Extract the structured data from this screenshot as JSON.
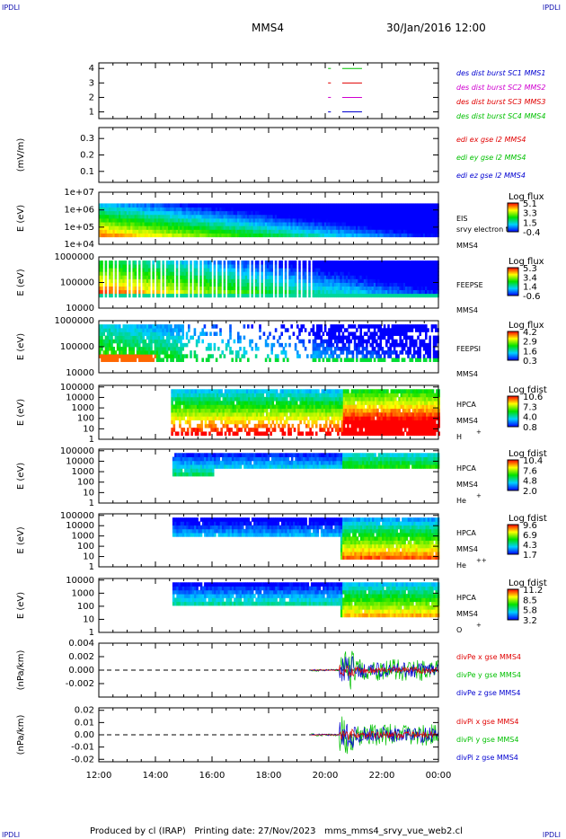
{
  "corners": {
    "tl": "IPDLI",
    "tr": "IPDLI",
    "bl": "IPDLI",
    "br": "IPDLI"
  },
  "header": {
    "spacecraft": "MMS4",
    "datetime": "30/Jan/2016 12:00"
  },
  "footer": {
    "text": "Produced by cl (IRAP)   Printing date: 27/Nov/2023   mms_mms4_srvy_vue_web2.cl"
  },
  "colors": {
    "red": "#e00000",
    "green": "#00c000",
    "blue": "#0000d0",
    "magenta": "#d000d0"
  },
  "chart_data": [
    {
      "type": "scatter",
      "panel": "burst",
      "ylabel": "",
      "yticks": [
        "1",
        "2",
        "3",
        "4"
      ],
      "series": [
        {
          "name": "des dist burst SC1 MMS1",
          "color": "#0000d0"
        },
        {
          "name": "des dist burst SC2 MMS2",
          "color": "#d000d0"
        },
        {
          "name": "des dist burst SC3 MMS3",
          "color": "#e00000"
        },
        {
          "name": "des dist burst SC4 MMS4",
          "color": "#00c000"
        }
      ],
      "bursts_hours": [
        [
          20.1,
          20.2
        ],
        [
          20.6,
          21.3
        ]
      ]
    },
    {
      "type": "line",
      "panel": "edi",
      "ylabel": "(mV/m)",
      "yticks": [
        "0.1",
        "0.2",
        "0.3"
      ],
      "series": [
        {
          "name": "edi ex gse l2 MMS4",
          "color": "#e00000"
        },
        {
          "name": "edi ey gse l2 MMS4",
          "color": "#00c000"
        },
        {
          "name": "edi ez gse l2 MMS4",
          "color": "#0000d0"
        }
      ]
    },
    {
      "type": "heatmap",
      "panel": "eis",
      "ylabel": "E (eV)",
      "yticks": [
        "1e+04",
        "1e+05",
        "1e+06",
        "1e+07"
      ],
      "labels": [
        "EIS",
        "srvy electron to",
        "MMS4"
      ],
      "cbar_title": "Log flux",
      "cbar_ticks": [
        "5.1",
        "3.3",
        "1.5",
        "-0.4"
      ]
    },
    {
      "type": "heatmap",
      "panel": "feepse",
      "ylabel": "E (eV)",
      "yticks": [
        "10000",
        "100000",
        "1000000"
      ],
      "labels": [
        "FEEPSE",
        "MMS4"
      ],
      "cbar_title": "Log flux",
      "cbar_ticks": [
        "5.3",
        "3.4",
        "1.4",
        "-0.6"
      ]
    },
    {
      "type": "heatmap",
      "panel": "feepsi",
      "ylabel": "E (eV)",
      "yticks": [
        "10000",
        "100000",
        "1000000"
      ],
      "labels": [
        "FEEPSI",
        "MMS4"
      ],
      "cbar_title": "Log flux",
      "cbar_ticks": [
        "4.2",
        "2.9",
        "1.6",
        "0.3"
      ]
    },
    {
      "type": "heatmap",
      "panel": "hpca_h",
      "ylabel": "E (eV)",
      "yticks": [
        "1",
        "10",
        "100",
        "1000",
        "10000",
        "100000"
      ],
      "labels": [
        "HPCA",
        "MMS4"
      ],
      "species": "H",
      "charge": "+",
      "cbar_title": "Log fdist",
      "cbar_ticks": [
        "10.6",
        "7.3",
        "4.0",
        "0.8"
      ]
    },
    {
      "type": "heatmap",
      "panel": "hpca_he",
      "ylabel": "E (eV)",
      "yticks": [
        "1",
        "10",
        "100",
        "1000",
        "10000",
        "100000"
      ],
      "labels": [
        "HPCA",
        "MMS4"
      ],
      "species": "He",
      "charge": "+",
      "cbar_title": "Log fdist",
      "cbar_ticks": [
        "10.4",
        "7.6",
        "4.8",
        "2.0"
      ]
    },
    {
      "type": "heatmap",
      "panel": "hpca_hepp",
      "ylabel": "E (eV)",
      "yticks": [
        "1",
        "10",
        "100",
        "1000",
        "10000",
        "100000"
      ],
      "labels": [
        "HPCA",
        "MMS4"
      ],
      "species": "He",
      "charge": "++",
      "cbar_title": "Log fdist",
      "cbar_ticks": [
        "9.6",
        "6.9",
        "4.3",
        "1.7"
      ]
    },
    {
      "type": "heatmap",
      "panel": "hpca_o",
      "ylabel": "E (eV)",
      "yticks": [
        "1",
        "10",
        "100",
        "1000",
        "10000"
      ],
      "labels": [
        "HPCA",
        "MMS4"
      ],
      "species": "O",
      "charge": "+",
      "cbar_title": "Log fdist",
      "cbar_ticks": [
        "11.2",
        "8.5",
        "5.8",
        "3.2"
      ]
    },
    {
      "type": "line",
      "panel": "divpe",
      "ylabel": "(nPa/km)",
      "yticks": [
        "-0.002",
        "0.000",
        "0.002",
        "0.004"
      ],
      "ylim": [
        -0.004,
        0.004
      ],
      "series": [
        {
          "name": "divPe x gse MMS4",
          "color": "#e00000"
        },
        {
          "name": "divPe y gse MMS4",
          "color": "#00c000"
        },
        {
          "name": "divPe z gse MMS4",
          "color": "#0000d0"
        }
      ]
    },
    {
      "type": "line",
      "panel": "divpi",
      "ylabel": "(nPa/km)",
      "yticks": [
        "-0.02",
        "-0.01",
        "0.00",
        "0.01",
        "0.02"
      ],
      "ylim": [
        -0.022,
        0.022
      ],
      "series": [
        {
          "name": "divPi x gse MMS4",
          "color": "#e00000"
        },
        {
          "name": "divPi y gse MMS4",
          "color": "#00c000"
        },
        {
          "name": "divPi z gse MMS4",
          "color": "#0000d0"
        }
      ]
    }
  ],
  "xaxis": {
    "ticks": [
      "12:00",
      "14:00",
      "16:00",
      "18:00",
      "20:00",
      "22:00",
      "00:00"
    ],
    "range_hours": [
      12,
      24
    ]
  }
}
